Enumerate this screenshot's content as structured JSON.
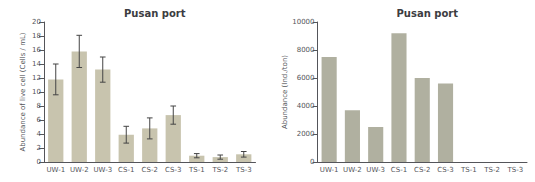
{
  "chart_data": [
    {
      "type": "bar",
      "title": "Pusan port",
      "categories": [
        "UW-1",
        "UW-2",
        "UW-3",
        "CS-1",
        "CS-2",
        "CS-3",
        "TS-1",
        "TS-2",
        "TS-3"
      ],
      "values": [
        11.8,
        15.8,
        13.2,
        3.9,
        4.8,
        6.7,
        0.9,
        0.7,
        1.1
      ],
      "errors": [
        2.2,
        2.3,
        1.8,
        1.2,
        1.5,
        1.3,
        0.3,
        0.3,
        0.4
      ],
      "ylabel": "Abundance of live cell (Cells / mL)",
      "color": "#c8c4ae",
      "ylim": [
        0,
        20
      ],
      "yticks": [
        0,
        2,
        4,
        6,
        8,
        10,
        12,
        14,
        16,
        18,
        20
      ],
      "grid": false
    },
    {
      "type": "bar",
      "title": "Pusan port",
      "categories": [
        "UW-1",
        "UW-2",
        "UW-3",
        "CS-1",
        "CS-2",
        "CS-3",
        "TS-1",
        "TS-2",
        "TS-3"
      ],
      "values": [
        7500,
        3700,
        2500,
        9200,
        6000,
        5600,
        0,
        0,
        0
      ],
      "ylabel": "Abundance (Ind./ton)",
      "color": "#b0b0a0",
      "ylim": [
        0,
        10000
      ],
      "yticks": [
        0,
        2000,
        4000,
        6000,
        8000,
        10000
      ],
      "grid": false
    }
  ]
}
